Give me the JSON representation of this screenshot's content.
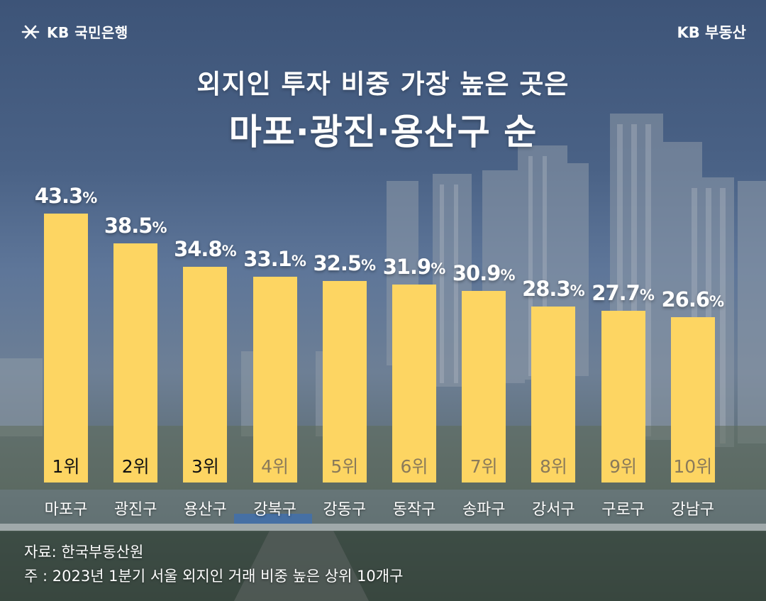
{
  "header": {
    "brand_left": "KB 국민은행",
    "brand_right": "KB 부동산"
  },
  "title": {
    "line1": "외지인 투자 비중 가장 높은 곳은",
    "line2": "마포·광진·용산구 순"
  },
  "chart_data": {
    "type": "bar",
    "categories": [
      "마포구",
      "광진구",
      "용산구",
      "강북구",
      "강동구",
      "동작구",
      "송파구",
      "강서구",
      "구로구",
      "강남구"
    ],
    "values": [
      43.3,
      38.5,
      34.8,
      33.1,
      32.5,
      31.9,
      30.9,
      28.3,
      27.7,
      26.6
    ],
    "value_labels": [
      "43.3",
      "38.5",
      "34.8",
      "33.1",
      "32.5",
      "31.9",
      "30.9",
      "28.3",
      "27.7",
      "26.6"
    ],
    "unit": "%",
    "ranks": [
      "1위",
      "2위",
      "3위",
      "4위",
      "5위",
      "6위",
      "7위",
      "8위",
      "9위",
      "10위"
    ],
    "bar_color": "#fdd562",
    "top_rank_text_color": "#111111",
    "other_rank_text_color": "#8a7a5a",
    "ylim": [
      0,
      45
    ],
    "grid": false,
    "legend": "none"
  },
  "footer": {
    "source": "자료: 한국부동산원",
    "note": "주 : 2023년 1분기 서울 외지인 거래 비중 높은 상위 10개구"
  }
}
